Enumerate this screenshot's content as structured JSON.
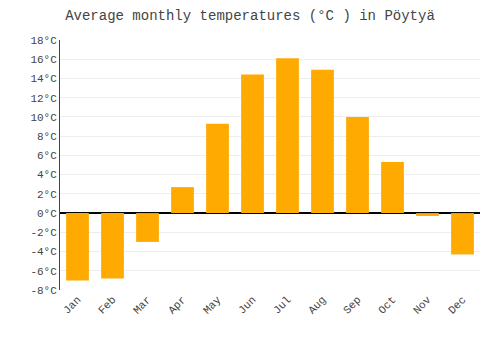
{
  "chart_data": {
    "type": "bar",
    "title": "Average monthly temperatures (°C ) in Pöytyä",
    "categories": [
      "Jan",
      "Feb",
      "Mar",
      "Apr",
      "May",
      "Jun",
      "Jul",
      "Aug",
      "Sep",
      "Oct",
      "Nov",
      "Dec"
    ],
    "values": [
      -7.0,
      -6.8,
      -3.0,
      2.7,
      9.3,
      14.4,
      16.1,
      14.9,
      10.0,
      5.3,
      -0.3,
      -4.3
    ],
    "color": "#FFAA00",
    "ylim": [
      -8,
      18
    ],
    "yticks": [
      {
        "value": -8,
        "label": "-8°C"
      },
      {
        "value": -6,
        "label": "-6°C"
      },
      {
        "value": -4,
        "label": "-4°C"
      },
      {
        "value": -2,
        "label": "-2°C"
      },
      {
        "value": 0,
        "label": "0°C"
      },
      {
        "value": 2,
        "label": "2°C"
      },
      {
        "value": 4,
        "label": "4°C"
      },
      {
        "value": 6,
        "label": "6°C"
      },
      {
        "value": 8,
        "label": "8°C"
      },
      {
        "value": 10,
        "label": "10°C"
      },
      {
        "value": 12,
        "label": "12°C"
      },
      {
        "value": 14,
        "label": "14°C"
      },
      {
        "value": 16,
        "label": "16°C"
      },
      {
        "value": 18,
        "label": "18°C"
      }
    ],
    "grid": true
  }
}
